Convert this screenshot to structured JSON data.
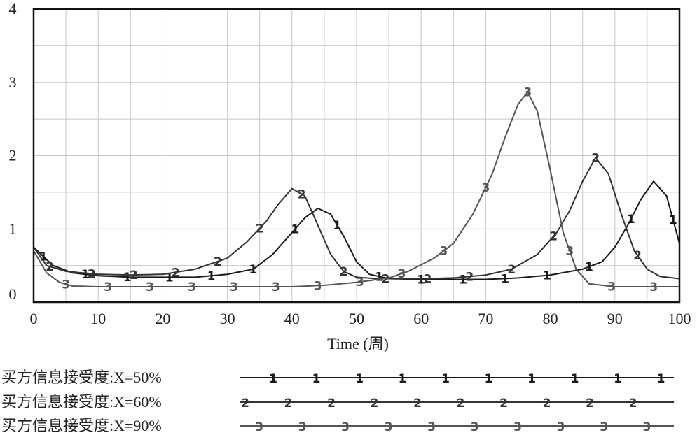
{
  "chart_data": {
    "type": "line",
    "title": "",
    "xlabel": "Time (周)",
    "ylabel": "",
    "xlim": [
      0,
      100
    ],
    "ylim": [
      0,
      4
    ],
    "x_ticks": [
      0,
      10,
      20,
      30,
      40,
      50,
      60,
      70,
      80,
      90,
      100
    ],
    "y_ticks": [
      0,
      1,
      2,
      3,
      4
    ],
    "grid": true,
    "legend_position": "bottom",
    "colors": {
      "1": "#1a1a1a",
      "2": "#333333",
      "3": "#555555",
      "grid": "#c8c8c8",
      "frame": "#111111"
    },
    "series": [
      {
        "marker": "1",
        "name": "买方信息接受度:X=50%",
        "x": [
          0,
          3,
          6,
          10,
          15,
          20,
          25,
          30,
          34,
          37,
          40,
          42,
          44,
          46,
          48,
          50,
          52,
          55,
          60,
          65,
          70,
          75,
          80,
          85,
          88,
          90,
          92,
          94,
          96,
          98,
          100
        ],
        "y": [
          0.75,
          0.5,
          0.4,
          0.36,
          0.34,
          0.34,
          0.34,
          0.38,
          0.45,
          0.65,
          0.95,
          1.15,
          1.28,
          1.2,
          0.9,
          0.55,
          0.38,
          0.32,
          0.31,
          0.31,
          0.31,
          0.33,
          0.37,
          0.45,
          0.55,
          0.75,
          1.05,
          1.4,
          1.65,
          1.45,
          0.8
        ]
      },
      {
        "marker": "2",
        "name": "买方信息接受度:X=60%",
        "x": [
          0,
          2,
          5,
          10,
          15,
          20,
          25,
          30,
          33,
          36,
          38,
          40,
          42,
          44,
          46,
          48,
          50,
          53,
          56,
          60,
          65,
          70,
          74,
          78,
          81,
          83,
          85,
          87,
          89,
          91,
          93,
          95,
          97,
          100
        ],
        "y": [
          0.75,
          0.5,
          0.42,
          0.38,
          0.37,
          0.38,
          0.45,
          0.6,
          0.82,
          1.1,
          1.35,
          1.55,
          1.45,
          1.05,
          0.65,
          0.42,
          0.34,
          0.32,
          0.32,
          0.32,
          0.33,
          0.37,
          0.45,
          0.65,
          0.95,
          1.25,
          1.65,
          1.97,
          1.75,
          1.2,
          0.7,
          0.45,
          0.35,
          0.32
        ]
      },
      {
        "marker": "3",
        "name": "买方信息接受度:X=90%",
        "x": [
          0,
          2,
          4,
          6,
          10,
          20,
          30,
          40,
          45,
          50,
          55,
          58,
          62,
          65,
          68,
          71,
          73,
          75,
          76.5,
          78,
          80,
          82,
          84,
          86,
          90,
          95,
          100
        ],
        "y": [
          0.7,
          0.4,
          0.27,
          0.22,
          0.21,
          0.21,
          0.21,
          0.21,
          0.23,
          0.27,
          0.33,
          0.42,
          0.6,
          0.8,
          1.2,
          1.75,
          2.25,
          2.7,
          2.87,
          2.6,
          1.8,
          0.95,
          0.45,
          0.25,
          0.21,
          0.21,
          0.21
        ]
      }
    ]
  },
  "legend": [
    {
      "marker": "1",
      "label": "买方信息接受度:X=50%"
    },
    {
      "marker": "2",
      "label": "买方信息接受度:X=60%"
    },
    {
      "marker": "3",
      "label": "买方信息接受度:X=90%"
    }
  ]
}
